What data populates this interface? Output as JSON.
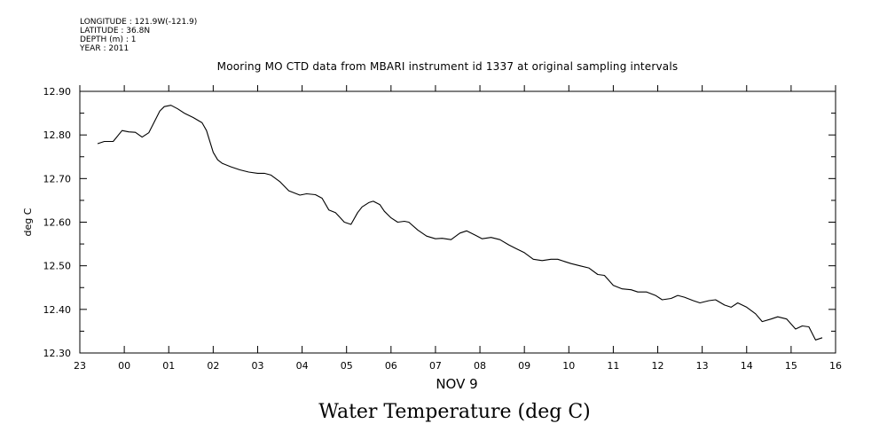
{
  "meta_lines": [
    "LONGITUDE : 121.9W(-121.9)",
    "LATITUDE : 36.8N",
    "DEPTH (m) : 1",
    "YEAR : 2011"
  ],
  "chart_data": {
    "type": "line",
    "title": "Mooring MO CTD data from MBARI instrument id 1337 at original sampling intervals",
    "ylabel": "deg C",
    "xlabel": "NOV  9",
    "bottom_title": "Water Temperature (deg C)",
    "xlim": [
      -1,
      16
    ],
    "ylim": [
      12.3,
      12.9
    ],
    "x_ticks": [
      -1,
      0,
      1,
      2,
      3,
      4,
      5,
      6,
      7,
      8,
      9,
      10,
      11,
      12,
      13,
      14,
      15,
      16
    ],
    "x_tick_labels": [
      "23",
      "00",
      "01",
      "02",
      "03",
      "04",
      "05",
      "06",
      "07",
      "08",
      "09",
      "10",
      "11",
      "12",
      "13",
      "14",
      "15",
      "16"
    ],
    "y_ticks": [
      12.3,
      12.4,
      12.5,
      12.6,
      12.7,
      12.8,
      12.9
    ],
    "y_tick_labels": [
      "12.30",
      "12.40",
      "12.50",
      "12.60",
      "12.70",
      "12.80",
      "12.90"
    ],
    "series": [
      {
        "x": [
          -0.6,
          -0.45,
          -0.25,
          -0.05,
          0.1,
          0.25,
          0.4,
          0.55,
          0.7,
          0.8,
          0.9,
          1.05,
          1.2,
          1.35,
          1.55,
          1.75,
          1.85,
          2.0,
          2.1,
          2.2,
          2.4,
          2.6,
          2.8,
          3.0,
          3.15,
          3.3,
          3.5,
          3.7,
          3.95,
          4.1,
          4.3,
          4.45,
          4.6,
          4.75,
          4.95,
          5.1,
          5.25,
          5.35,
          5.5,
          5.6,
          5.75,
          5.85,
          6.0,
          6.15,
          6.3,
          6.4,
          6.6,
          6.8,
          7.0,
          7.15,
          7.35,
          7.55,
          7.7,
          7.9,
          8.05,
          8.25,
          8.45,
          8.65,
          8.8,
          9.0,
          9.2,
          9.4,
          9.6,
          9.75,
          9.9,
          10.05,
          10.25,
          10.45,
          10.65,
          10.8,
          11.0,
          11.2,
          11.4,
          11.55,
          11.75,
          11.95,
          12.1,
          12.3,
          12.45,
          12.6,
          12.8,
          12.95,
          13.15,
          13.3,
          13.5,
          13.65,
          13.8,
          14.0,
          14.2,
          14.35,
          14.55,
          14.7,
          14.9,
          15.1,
          15.25,
          15.4,
          15.55,
          15.7
        ],
        "y": [
          12.78,
          12.785,
          12.785,
          12.81,
          12.807,
          12.806,
          12.795,
          12.805,
          12.835,
          12.855,
          12.865,
          12.868,
          12.86,
          12.85,
          12.84,
          12.828,
          12.81,
          12.76,
          12.743,
          12.735,
          12.727,
          12.72,
          12.715,
          12.712,
          12.712,
          12.708,
          12.693,
          12.672,
          12.662,
          12.665,
          12.663,
          12.655,
          12.628,
          12.622,
          12.6,
          12.595,
          12.622,
          12.635,
          12.645,
          12.648,
          12.64,
          12.625,
          12.61,
          12.6,
          12.602,
          12.6,
          12.582,
          12.568,
          12.562,
          12.563,
          12.56,
          12.575,
          12.58,
          12.57,
          12.562,
          12.565,
          12.56,
          12.548,
          12.54,
          12.53,
          12.515,
          12.512,
          12.515,
          12.515,
          12.51,
          12.505,
          12.5,
          12.495,
          12.48,
          12.478,
          12.455,
          12.447,
          12.445,
          12.44,
          12.44,
          12.432,
          12.422,
          12.425,
          12.432,
          12.428,
          12.42,
          12.415,
          12.42,
          12.422,
          12.41,
          12.405,
          12.415,
          12.405,
          12.39,
          12.372,
          12.378,
          12.383,
          12.378,
          12.355,
          12.362,
          12.36,
          12.33,
          12.335
        ]
      }
    ]
  }
}
